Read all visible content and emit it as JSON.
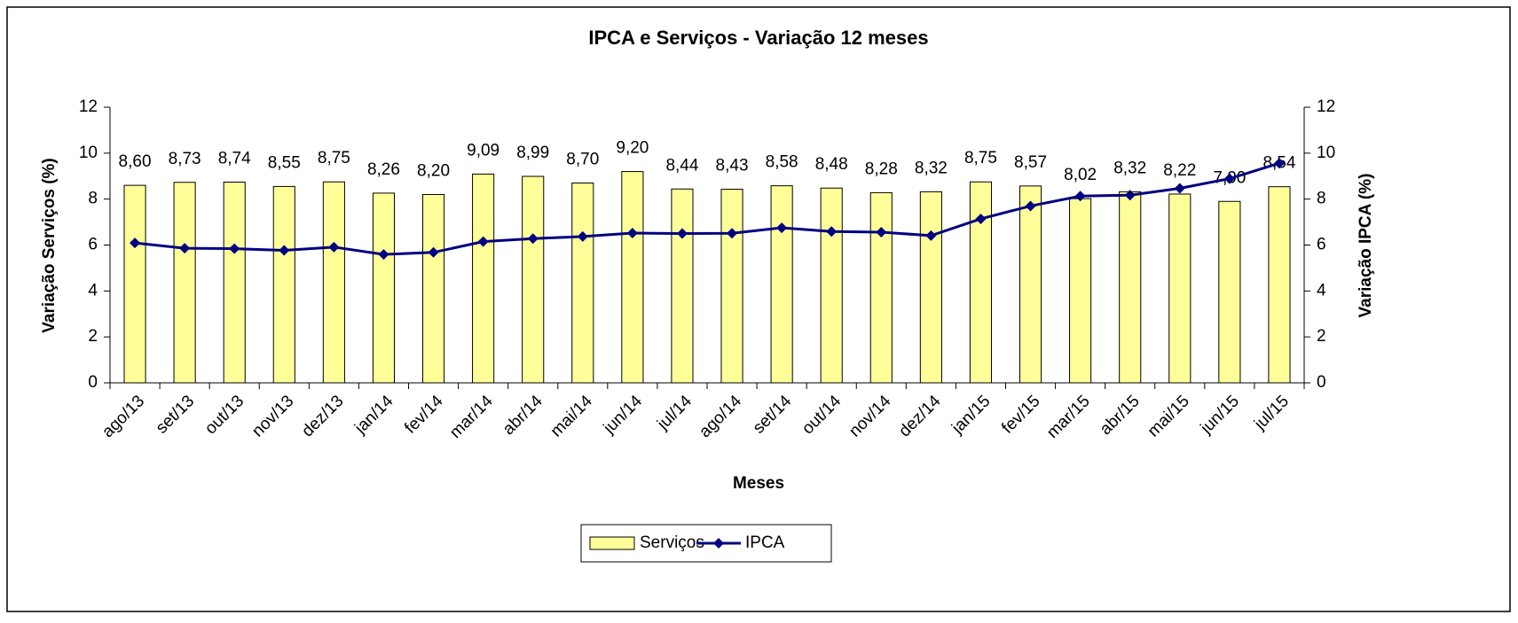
{
  "chart_data": {
    "type": "bar",
    "title": "IPCA e Serviços - Variação 12 meses",
    "x_label": "Meses",
    "y_label": "Variação Serviços (%)",
    "y2_label": "Variação IPCA (%)",
    "categories": [
      "ago/13",
      "set/13",
      "out/13",
      "nov/13",
      "dez/13",
      "jan/14",
      "fev/14",
      "mar/14",
      "abr/14",
      "mai/14",
      "jun/14",
      "jul/14",
      "ago/14",
      "set/14",
      "out/14",
      "nov/14",
      "dez/14",
      "jan/15",
      "fev/15",
      "mar/15",
      "abr/15",
      "mai/15",
      "jun/15",
      "jul/15"
    ],
    "series": [
      {
        "name": "Serviços",
        "type": "bar",
        "color": "#ffff99",
        "values": [
          8.6,
          8.73,
          8.74,
          8.55,
          8.75,
          8.26,
          8.2,
          9.09,
          8.99,
          8.7,
          9.2,
          8.44,
          8.43,
          8.58,
          8.48,
          8.28,
          8.32,
          8.75,
          8.57,
          8.02,
          8.32,
          8.22,
          7.9,
          8.54
        ],
        "value_labels": [
          "8,60",
          "8,73",
          "8,74",
          "8,55",
          "8,75",
          "8,26",
          "8,20",
          "9,09",
          "8,99",
          "8,70",
          "9,20",
          "8,44",
          "8,43",
          "8,58",
          "8,48",
          "8,28",
          "8,32",
          "8,75",
          "8,57",
          "8,02",
          "8,32",
          "8,22",
          "7,90",
          "8,54"
        ]
      },
      {
        "name": "IPCA",
        "type": "line",
        "axis": "y2",
        "color": "#000080",
        "values": [
          6.09,
          5.86,
          5.84,
          5.77,
          5.91,
          5.59,
          5.68,
          6.15,
          6.28,
          6.37,
          6.52,
          6.5,
          6.51,
          6.75,
          6.59,
          6.56,
          6.41,
          7.14,
          7.7,
          8.13,
          8.17,
          8.47,
          8.89,
          9.56
        ]
      }
    ],
    "ylim": [
      0,
      12
    ],
    "yticks": [
      0,
      2,
      4,
      6,
      8,
      10,
      12
    ],
    "y2lim": [
      0,
      12
    ],
    "y2ticks": [
      0,
      2,
      4,
      6,
      8,
      10,
      12
    ],
    "legend": "bottom"
  }
}
